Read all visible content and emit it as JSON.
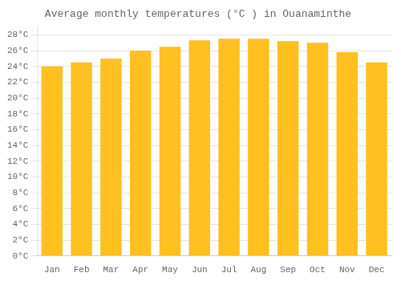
{
  "chart_data": {
    "type": "bar",
    "title": "Average monthly temperatures (°C ) in Ouanaminthe",
    "categories": [
      "Jan",
      "Feb",
      "Mar",
      "Apr",
      "May",
      "Jun",
      "Jul",
      "Aug",
      "Sep",
      "Oct",
      "Nov",
      "Dec"
    ],
    "values": [
      24.0,
      24.5,
      25.0,
      26.0,
      26.5,
      27.3,
      27.5,
      27.5,
      27.2,
      27.0,
      25.8,
      24.5
    ],
    "color": "#FFC020",
    "ylim": [
      0,
      29
    ],
    "yticks": [
      {
        "value": 0,
        "label": "0°C"
      },
      {
        "value": 2,
        "label": "2°C"
      },
      {
        "value": 4,
        "label": "4°C"
      },
      {
        "value": 6,
        "label": "6°C"
      },
      {
        "value": 8,
        "label": "8°C"
      },
      {
        "value": 10,
        "label": "10°C"
      },
      {
        "value": 12,
        "label": "12°C"
      },
      {
        "value": 14,
        "label": "14°C"
      },
      {
        "value": 16,
        "label": "16°C"
      },
      {
        "value": 18,
        "label": "18°C"
      },
      {
        "value": 20,
        "label": "20°C"
      },
      {
        "value": 22,
        "label": "22°C"
      },
      {
        "value": 24,
        "label": "24°C"
      },
      {
        "value": 26,
        "label": "26°C"
      },
      {
        "value": 28,
        "label": "28°C"
      }
    ],
    "grid": "y"
  }
}
